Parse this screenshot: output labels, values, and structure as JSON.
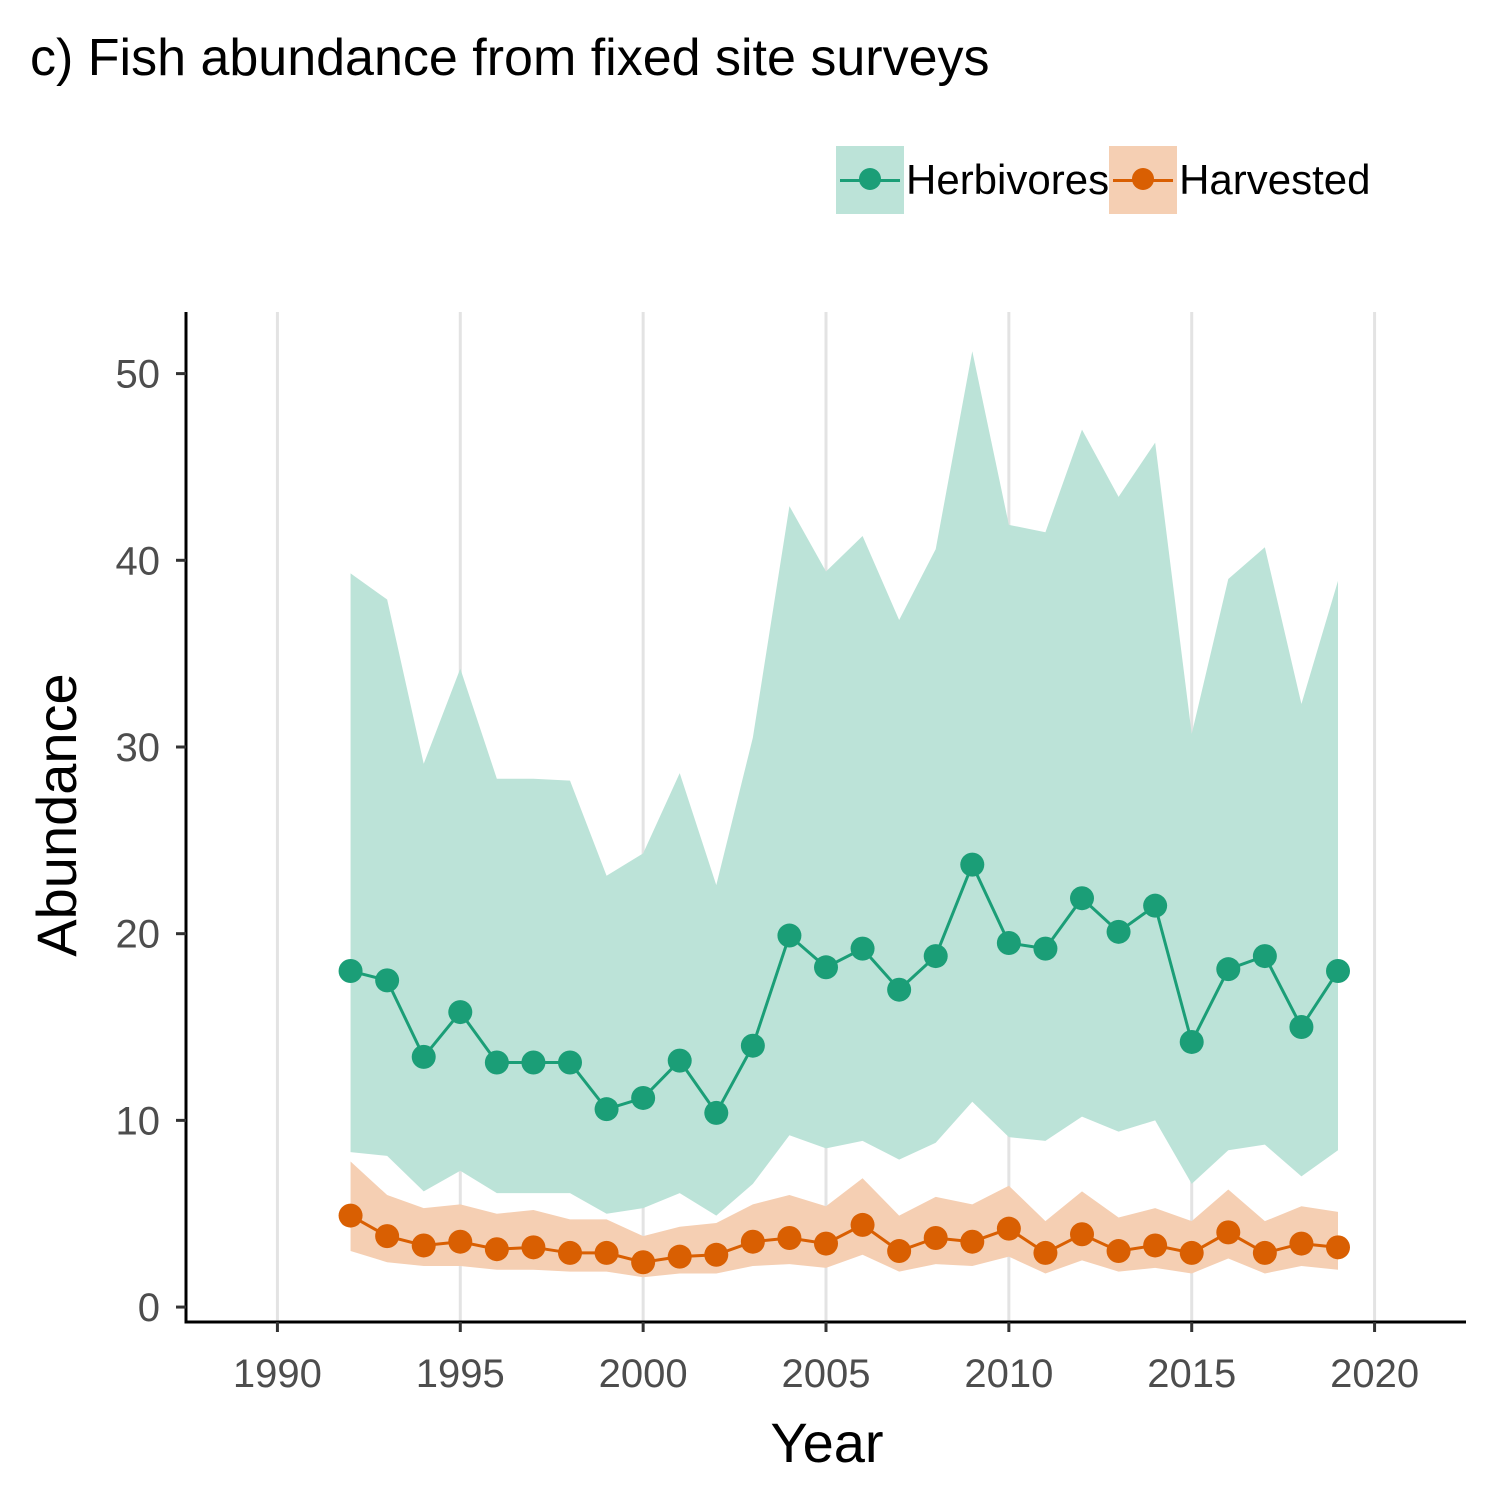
{
  "chart_data": {
    "type": "line",
    "title": "c) Fish abundance from fixed site surveys",
    "xlabel": "Year",
    "ylabel": "Abundance",
    "xlim": [
      1987.5,
      2022.5
    ],
    "ylim": [
      -0.8,
      53.3
    ],
    "xticks": [
      1990,
      1995,
      2000,
      2005,
      2010,
      2015,
      2020
    ],
    "yticks": [
      0,
      10,
      20,
      30,
      40,
      50
    ],
    "grid": "vertical major lines only",
    "legend_position": "top-right",
    "x": [
      1992,
      1993,
      1994,
      1995,
      1996,
      1997,
      1998,
      1999,
      2000,
      2001,
      2002,
      2003,
      2004,
      2005,
      2006,
      2007,
      2008,
      2009,
      2010,
      2011,
      2012,
      2013,
      2014,
      2015,
      2016,
      2017,
      2018,
      2019
    ],
    "series": [
      {
        "name": "Herbivores",
        "color": "#1b9e77",
        "band_color": "#bce3d8",
        "values": [
          18.0,
          17.5,
          13.4,
          15.8,
          13.1,
          13.1,
          13.1,
          10.6,
          11.2,
          13.2,
          10.4,
          14.0,
          19.9,
          18.2,
          19.2,
          17.0,
          18.8,
          23.7,
          19.5,
          19.2,
          21.9,
          20.1,
          21.5,
          14.2,
          18.1,
          18.8,
          15.0,
          18.0
        ],
        "lower": [
          8.3,
          8.1,
          6.2,
          7.3,
          6.1,
          6.1,
          6.1,
          5.0,
          5.3,
          6.1,
          4.9,
          6.6,
          9.2,
          8.5,
          8.9,
          7.9,
          8.8,
          11.0,
          9.1,
          8.9,
          10.2,
          9.4,
          10.0,
          6.6,
          8.4,
          8.7,
          7.0,
          8.4
        ],
        "upper": [
          39.3,
          37.9,
          29.1,
          34.2,
          28.3,
          28.3,
          28.2,
          23.1,
          24.3,
          28.6,
          22.6,
          30.5,
          42.9,
          39.4,
          41.3,
          36.8,
          40.6,
          51.2,
          41.9,
          41.5,
          47.0,
          43.4,
          46.3,
          30.7,
          39.0,
          40.7,
          32.3,
          38.9
        ]
      },
      {
        "name": "Harvested",
        "color": "#d95f02",
        "band_color": "#f5cfb3",
        "values": [
          4.9,
          3.8,
          3.3,
          3.5,
          3.1,
          3.2,
          2.9,
          2.9,
          2.4,
          2.7,
          2.8,
          3.5,
          3.7,
          3.4,
          4.4,
          3.0,
          3.7,
          3.5,
          4.2,
          2.9,
          3.9,
          3.0,
          3.3,
          2.9,
          4.0,
          2.9,
          3.4,
          3.2
        ],
        "lower": [
          3.0,
          2.4,
          2.2,
          2.2,
          2.0,
          2.0,
          1.9,
          1.9,
          1.6,
          1.8,
          1.8,
          2.2,
          2.3,
          2.1,
          2.8,
          1.9,
          2.3,
          2.2,
          2.7,
          1.8,
          2.5,
          1.9,
          2.1,
          1.8,
          2.6,
          1.8,
          2.2,
          2.0
        ],
        "upper": [
          7.8,
          6.0,
          5.3,
          5.5,
          5.0,
          5.2,
          4.7,
          4.7,
          3.8,
          4.3,
          4.5,
          5.5,
          6.0,
          5.4,
          6.9,
          4.9,
          5.9,
          5.5,
          6.5,
          4.6,
          6.2,
          4.8,
          5.3,
          4.6,
          6.3,
          4.6,
          5.4,
          5.1
        ]
      }
    ]
  }
}
